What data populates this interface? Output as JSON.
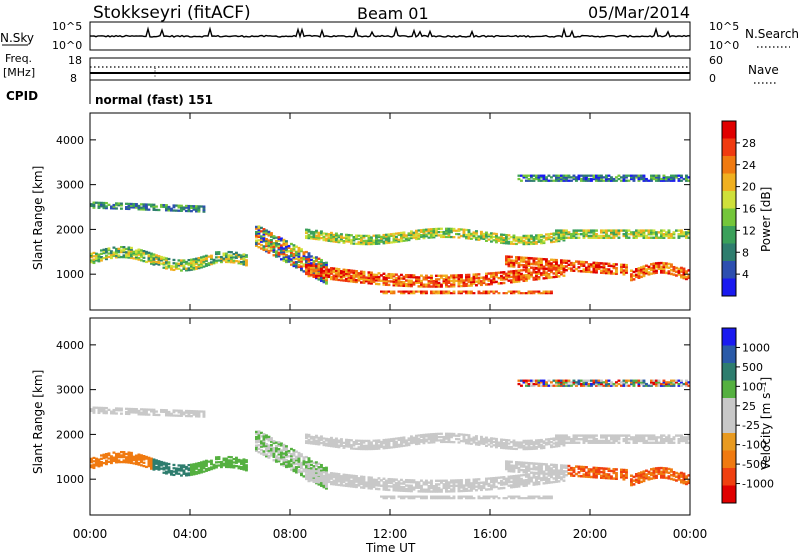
{
  "header": {
    "station": "Stokkseyri (fitACF)",
    "beam": "Beam 01",
    "date": "05/Mar/2014"
  },
  "top_panels": {
    "nsky_label": "N.Sky",
    "nsearch_label": "N.Search",
    "noise_tick_top": "10^5",
    "noise_tick_bottom": "10^0",
    "freq_label": "Freq.",
    "freq_unit": "[MHz]",
    "freq_tick_top": "18",
    "freq_tick_bottom": "8",
    "nave_label": "Nave",
    "nave_tick_top": "60",
    "nave_tick_bottom": "0",
    "cpid_label": "CPID",
    "cpid_value": "normal (fast) 151"
  },
  "colors": {
    "power_scale": [
      "#1a1af0",
      "#2d4fb0",
      "#2e7d6e",
      "#3aa05a",
      "#74c63a",
      "#cfe03a",
      "#f0b020",
      "#f07a10",
      "#f03a10",
      "#e00000"
    ],
    "velocity_scale": [
      "#1a1af0",
      "#2a5aa8",
      "#2e7d6e",
      "#55b040",
      "#c8c8c8",
      "#c8c8c8",
      "#e89a20",
      "#f07a10",
      "#f04010",
      "#e00000"
    ]
  },
  "chart_data": [
    {
      "type": "heatmap",
      "name": "power",
      "title": "",
      "ylabel": "Slant Range [km]",
      "xlabel": "",
      "ylim": [
        200,
        4600
      ],
      "yticks": [
        "1000",
        "2000",
        "3000",
        "4000"
      ],
      "colorbar_label": "Power [dB]",
      "colorbar_ticks": [
        "4",
        "8",
        "12",
        "16",
        "20",
        "24",
        "28"
      ],
      "clim": [
        0,
        32
      ]
    },
    {
      "type": "heatmap",
      "name": "velocity",
      "title": "",
      "xlabel": "Time UT",
      "ylabel": "Slant Range [km]",
      "ylim": [
        200,
        4600
      ],
      "yticks": [
        "1000",
        "2000",
        "3000",
        "4000"
      ],
      "xticks": [
        "00:00",
        "04:00",
        "08:00",
        "12:00",
        "16:00",
        "20:00",
        "00:00"
      ],
      "colorbar_label": "Velocity [m s⁻¹]",
      "colorbar_ticks": [
        "1000",
        "500",
        "100",
        "25",
        "-25",
        "-100",
        "-500",
        "-1000"
      ]
    }
  ]
}
